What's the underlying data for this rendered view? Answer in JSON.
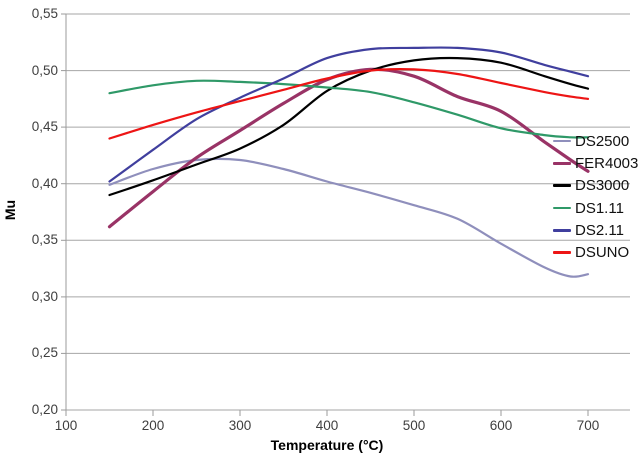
{
  "chart_data": {
    "type": "line",
    "title": "",
    "xlabel": "Temperature (°C)",
    "ylabel": "Mu",
    "xlim": [
      100,
      750
    ],
    "ylim": [
      0.2,
      0.55
    ],
    "grid": "horizontal",
    "legend_position": "inside-right",
    "x_ticks": [
      100,
      200,
      300,
      400,
      500,
      600,
      700
    ],
    "x_tick_labels": [
      "100",
      "200",
      "300",
      "400",
      "500",
      "600",
      "700"
    ],
    "y_ticks": [
      0.55,
      0.5,
      0.45,
      0.4,
      0.35,
      0.3,
      0.25,
      0.2
    ],
    "y_tick_labels": [
      "0,55",
      "0,50",
      "0,45",
      "0,40",
      "0,35",
      "0,30",
      "0,25",
      "0,20"
    ],
    "x": [
      150,
      200,
      250,
      300,
      350,
      400,
      450,
      500,
      550,
      600,
      650,
      680,
      700
    ],
    "series": [
      {
        "name": "DS2500",
        "color": "#8f8fbc",
        "width": 2.2,
        "values": [
          0.399,
          0.413,
          0.421,
          0.421,
          0.413,
          0.402,
          0.392,
          0.381,
          0.369,
          0.347,
          0.326,
          0.318,
          0.32
        ]
      },
      {
        "name": "FER4003",
        "color": "#993366",
        "width": 3.2,
        "values": [
          0.362,
          0.393,
          0.423,
          0.447,
          0.471,
          0.492,
          0.501,
          0.495,
          0.477,
          0.464,
          0.437,
          0.421,
          0.411
        ]
      },
      {
        "name": "DS3000",
        "color": "#000000",
        "width": 2.2,
        "values": [
          0.39,
          0.403,
          0.417,
          0.431,
          0.452,
          0.482,
          0.5,
          0.509,
          0.511,
          0.507,
          0.495,
          0.488,
          0.484
        ]
      },
      {
        "name": "DS1.11",
        "color": "#2f9968",
        "width": 2.2,
        "values": [
          0.48,
          0.487,
          0.491,
          0.49,
          0.488,
          0.485,
          0.481,
          0.472,
          0.461,
          0.449,
          0.443,
          0.441,
          0.441
        ]
      },
      {
        "name": "DS2.11",
        "color": "#403f9e",
        "width": 2.2,
        "values": [
          0.402,
          0.43,
          0.457,
          0.476,
          0.493,
          0.511,
          0.519,
          0.52,
          0.52,
          0.516,
          0.505,
          0.499,
          0.495
        ]
      },
      {
        "name": "DSUNO",
        "color": "#ed1515",
        "width": 2.2,
        "values": [
          0.44,
          0.452,
          0.463,
          0.473,
          0.483,
          0.493,
          0.5,
          0.501,
          0.497,
          0.489,
          0.481,
          0.477,
          0.475
        ]
      }
    ]
  },
  "axes": {
    "x_title": "Temperature (°C)",
    "y_title": "Mu"
  },
  "colors": {
    "background": "#ffffff",
    "grid": "#a6a6a6",
    "axis": "#9b9b9b",
    "tick_text": "#3f3f3f"
  }
}
